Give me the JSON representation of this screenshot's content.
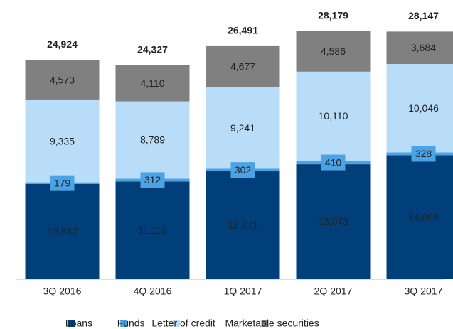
{
  "chart_data": {
    "type": "stacked_bar",
    "categories": [
      "3Q 2016",
      "4Q 2016",
      "1Q 2017",
      "2Q 2017",
      "3Q 2017"
    ],
    "series": [
      {
        "name": "Loans",
        "color": "#003f7a",
        "values": [
          10837,
          11116,
          12271,
          13073,
          14089
        ],
        "value_labels": [
          "10,837",
          "11,116",
          "12,271",
          "13,073",
          "14,089"
        ]
      },
      {
        "name": "Funds",
        "color": "#4ba3e6",
        "values": [
          179,
          312,
          302,
          410,
          328
        ],
        "value_labels": [
          "179",
          "312",
          "302",
          "410",
          "328"
        ]
      },
      {
        "name": "Letter of credit",
        "color": "#b9ddf9",
        "values": [
          9335,
          8789,
          9241,
          10110,
          10046
        ],
        "value_labels": [
          "9,335",
          "8,789",
          "9,241",
          "10,110",
          "10,046"
        ]
      },
      {
        "name": "Marketable securities",
        "color": "#808080",
        "values": [
          4573,
          4110,
          4677,
          4586,
          3684
        ],
        "value_labels": [
          "4,573",
          "4,110",
          "4,677",
          "4,586",
          "3,684"
        ]
      }
    ],
    "totals": {
      "values": [
        24924,
        24327,
        26491,
        28179,
        28147
      ],
      "value_labels": [
        "24,924",
        "24,327",
        "26,491",
        "28,179",
        "28,147"
      ]
    },
    "legend": "bottom"
  }
}
